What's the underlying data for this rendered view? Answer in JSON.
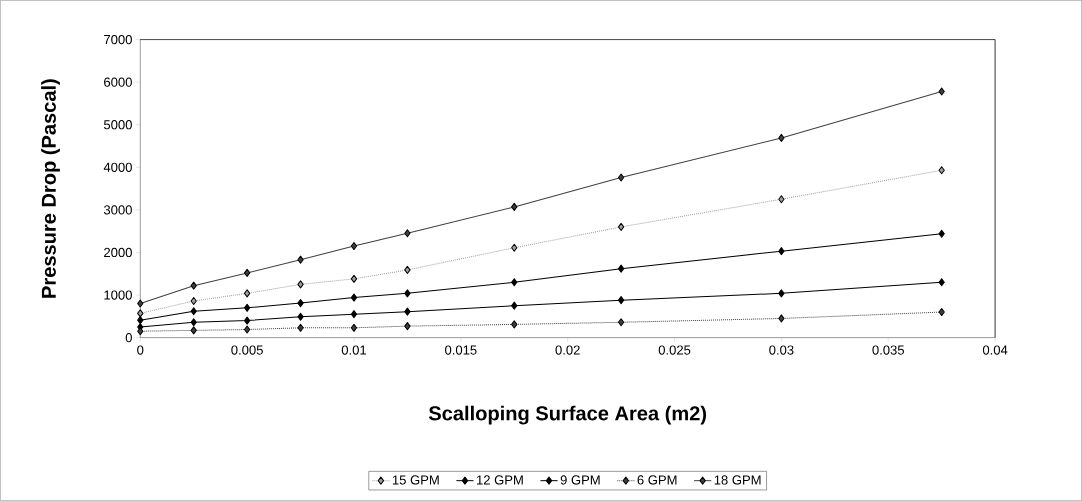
{
  "chart_data": {
    "type": "line",
    "xlabel": "Scalloping Surface Area (m2)",
    "ylabel": "Pressure Drop (Pascal)",
    "x": [
      0,
      0.0025,
      0.005,
      0.0075,
      0.01,
      0.0125,
      0.0175,
      0.0225,
      0.03,
      0.0375
    ],
    "series": [
      {
        "name": "15 GPM",
        "color": "#a0a0a0",
        "line_style": "dotted",
        "values": [
          570,
          860,
          1040,
          1250,
          1380,
          1590,
          2110,
          2600,
          3250,
          3930
        ]
      },
      {
        "name": "12 GPM",
        "color": "#000000",
        "line_style": "solid",
        "values": [
          410,
          620,
          700,
          810,
          940,
          1040,
          1300,
          1620,
          2030,
          2440
        ]
      },
      {
        "name": "9 GPM",
        "color": "#000000",
        "line_style": "solid",
        "values": [
          250,
          360,
          400,
          490,
          550,
          610,
          750,
          880,
          1040,
          1300
        ]
      },
      {
        "name": "6 GPM",
        "color": "#404040",
        "line_style": "dotted",
        "values": [
          150,
          170,
          190,
          230,
          230,
          270,
          310,
          360,
          450,
          600
        ]
      },
      {
        "name": "18 GPM",
        "color": "#404040",
        "line_style": "solid",
        "values": [
          800,
          1220,
          1520,
          1830,
          2150,
          2450,
          3070,
          3760,
          4690,
          5780
        ]
      }
    ],
    "xlim": [
      0,
      0.04
    ],
    "xticks": [
      0,
      0.005,
      0.01,
      0.015,
      0.02,
      0.025,
      0.03,
      0.035,
      0.04
    ],
    "ylim": [
      0,
      7000
    ],
    "yticks": [
      0,
      1000,
      2000,
      3000,
      4000,
      5000,
      6000,
      7000
    ],
    "marker": "diamond",
    "grid": false,
    "legend": "bottom"
  }
}
